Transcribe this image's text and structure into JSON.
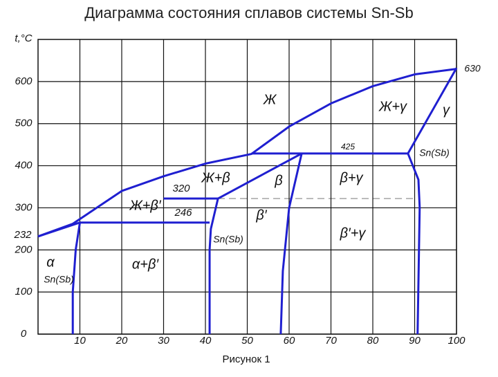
{
  "chart_data": {
    "type": "line",
    "title": "Диаграмма состояния сплавов системы Sn-Sb",
    "y_label": "t,°C",
    "caption": "Рисунок 1",
    "xlim": [
      0,
      100
    ],
    "ylim": [
      0,
      700
    ],
    "xticks": [
      10,
      20,
      30,
      40,
      50,
      60,
      70,
      80,
      90,
      100
    ],
    "yticks": [
      0,
      100,
      200,
      300,
      400,
      500,
      600
    ],
    "grid": true,
    "color": "#1f1fd0",
    "series": [
      {
        "x": [
          0,
          8.3,
          20,
          30,
          40,
          51,
          60,
          70,
          80,
          90,
          100
        ],
        "values": [
          232,
          262,
          340,
          375,
          405,
          428,
          493,
          548,
          589,
          617,
          630
        ]
      },
      {
        "x": [
          0,
          10
        ],
        "values": [
          232,
          265
        ]
      },
      {
        "x": [
          10,
          9,
          8.3,
          8.3
        ],
        "values": [
          265,
          200,
          100,
          0
        ]
      },
      {
        "x": [
          10,
          41
        ],
        "values": [
          265,
          265
        ]
      },
      {
        "x": [
          41,
          41,
          41.3,
          43
        ],
        "values": [
          0,
          200,
          250,
          322
        ]
      },
      {
        "x": [
          30,
          43
        ],
        "values": [
          322,
          322
        ]
      },
      {
        "x": [
          43,
          63
        ],
        "values": [
          322,
          429
        ]
      },
      {
        "x": [
          51,
          88.4
        ],
        "values": [
          429,
          429
        ]
      },
      {
        "x": [
          63,
          60,
          58.5,
          58
        ],
        "values": [
          429,
          300,
          150,
          0
        ]
      },
      {
        "x": [
          88.4,
          100
        ],
        "values": [
          429,
          632
        ]
      },
      {
        "x": [
          88.4,
          90.9,
          91.2,
          90.7
        ],
        "values": [
          429,
          367,
          301,
          0
        ]
      }
    ],
    "annotations": [
      "232",
      "Ж",
      "Ж+γ",
      "γ",
      "630",
      "425",
      "Sn(Sb)",
      "Ж+β",
      "β",
      "β+γ",
      "320",
      "Ж+β′",
      "246",
      "β′",
      "Sn(Sb)",
      "β′+γ",
      "α",
      "Sn(Sb)",
      "α+β′"
    ]
  }
}
